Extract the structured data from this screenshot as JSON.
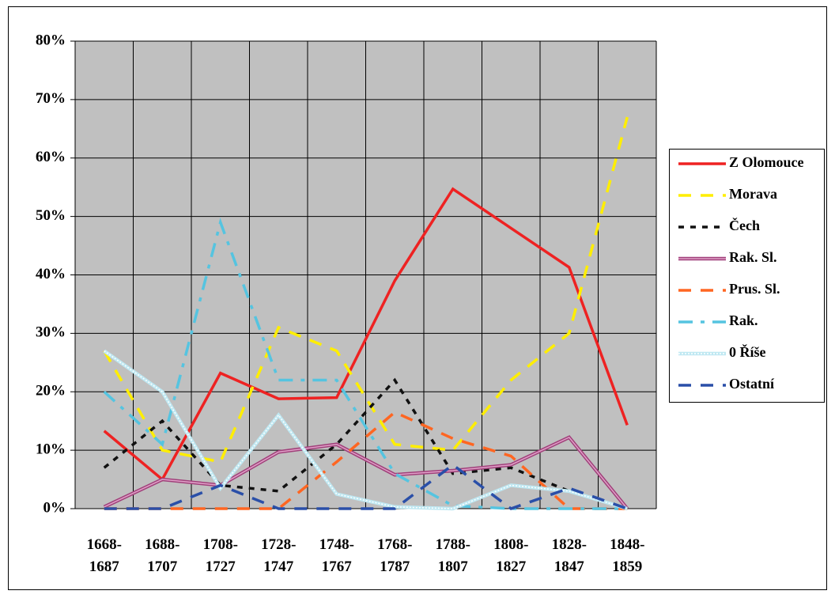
{
  "chart_data": {
    "type": "line",
    "categories": [
      "1668-\n1687",
      "1688-\n1707",
      "1708-\n1727",
      "1728-\n1747",
      "1748-\n1767",
      "1768-\n1787",
      "1788-\n1807",
      "1808-\n1827",
      "1828-\n1847",
      "1848-\n1859"
    ],
    "series": [
      {
        "name": "Z Olomouce",
        "color": "#ee2222",
        "values": [
          13.3,
          5,
          23.2,
          18.8,
          19,
          39,
          54.7,
          48,
          41.3,
          14.3
        ]
      },
      {
        "name": "Morava",
        "color": "#ffee00",
        "values": [
          27,
          10,
          8,
          31,
          27,
          11,
          10,
          22,
          30,
          67
        ]
      },
      {
        "name": "Čech",
        "color": "#111111",
        "values": [
          7,
          15,
          4,
          3,
          11,
          22,
          6,
          7,
          3,
          0
        ]
      },
      {
        "name": "Rak. Sl.",
        "color": "#a0407a",
        "values": [
          0.3,
          5,
          4,
          9.7,
          11,
          5.8,
          6.5,
          7.5,
          12.2,
          0
        ]
      },
      {
        "name": "Prus. Sl.",
        "color": "#ff6622",
        "values": [
          0,
          0,
          0,
          0,
          8,
          16.5,
          12,
          9,
          0,
          0
        ]
      },
      {
        "name": "Rak.",
        "color": "#55c4e0",
        "values": [
          20,
          11,
          49,
          22,
          22,
          6,
          0.5,
          0,
          0,
          0
        ]
      },
      {
        "name": "0 Říše",
        "color": "#bfe8f2",
        "values": [
          27,
          20,
          3.5,
          16,
          2.5,
          0.3,
          0,
          4,
          3,
          0
        ]
      },
      {
        "name": "Ostatní",
        "color": "#2a4fa8",
        "values": [
          0,
          0,
          4,
          0,
          0,
          0,
          7.5,
          0,
          3.5,
          0
        ]
      }
    ],
    "ylim": [
      0,
      80
    ],
    "yticks": [
      {
        "value": 0,
        "label": "0%"
      },
      {
        "value": 10,
        "label": "10%"
      },
      {
        "value": 20,
        "label": "20%"
      },
      {
        "value": 30,
        "label": "30%"
      },
      {
        "value": 40,
        "label": "40%"
      },
      {
        "value": 50,
        "label": "50%"
      },
      {
        "value": 60,
        "label": "60%"
      },
      {
        "value": 70,
        "label": "70%"
      },
      {
        "value": 80,
        "label": "80%"
      }
    ],
    "grid": true,
    "legend": "right"
  }
}
